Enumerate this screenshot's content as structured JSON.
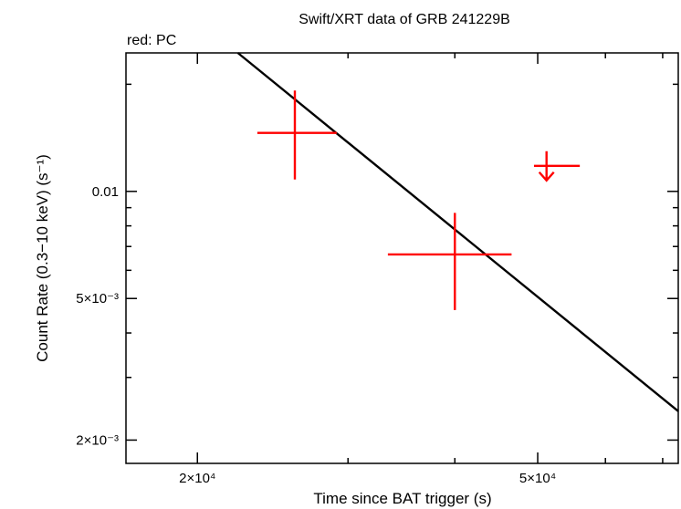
{
  "chart_data": {
    "type": "scatter",
    "title": "Swift/XRT data of GRB 241229B",
    "annotation": "red: PC",
    "xlabel": "Time since BAT trigger (s)",
    "ylabel": "Count Rate (0.3−10 keV) (s⁻¹)",
    "x_scale": "log",
    "y_scale": "log",
    "xlim": [
      16500,
      73000
    ],
    "ylim": [
      0.00172,
      0.0245
    ],
    "x_ticks": [
      {
        "value": 20000,
        "label": "2×10⁴"
      },
      {
        "value": 50000,
        "label": "5×10⁴"
      }
    ],
    "x_minor_ticks": [
      30000,
      40000,
      60000,
      70000
    ],
    "y_ticks": [
      {
        "value": 0.002,
        "label": "2×10⁻³"
      },
      {
        "value": 0.005,
        "label": "5×10⁻³"
      },
      {
        "value": 0.01,
        "label": "0.01"
      }
    ],
    "y_minor_ticks": [
      0.003,
      0.004,
      0.006,
      0.007,
      0.008,
      0.009,
      0.02
    ],
    "grid": false,
    "series": [
      {
        "mode": "PC",
        "color": "#ff0000",
        "points": [
          {
            "x": 26000,
            "x_lo": 23500,
            "x_hi": 29100,
            "y": 0.0146,
            "y_lo": 0.0108,
            "y_hi": 0.0192
          },
          {
            "x": 40000,
            "x_lo": 33400,
            "x_hi": 46600,
            "y": 0.00665,
            "y_lo": 0.00464,
            "y_hi": 0.0087
          }
        ],
        "upper_limits": [
          {
            "x": 51200,
            "x_lo": 49500,
            "x_hi": 56000,
            "y": 0.0118
          }
        ]
      }
    ],
    "model_line": {
      "color": "#000000",
      "points": [
        {
          "x": 22300,
          "y": 0.0245
        },
        {
          "x": 73000,
          "y": 0.00241
        }
      ]
    }
  }
}
